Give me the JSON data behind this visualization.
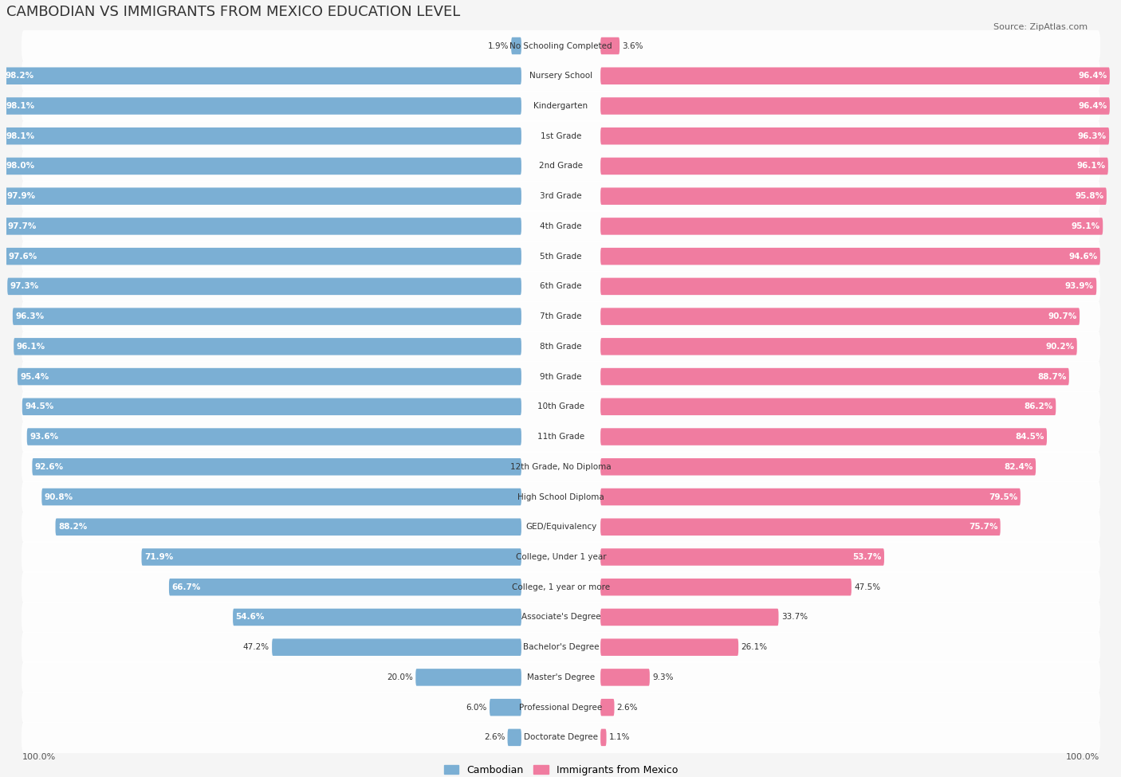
{
  "title": "CAMBODIAN VS IMMIGRANTS FROM MEXICO EDUCATION LEVEL",
  "source": "Source: ZipAtlas.com",
  "categories": [
    "No Schooling Completed",
    "Nursery School",
    "Kindergarten",
    "1st Grade",
    "2nd Grade",
    "3rd Grade",
    "4th Grade",
    "5th Grade",
    "6th Grade",
    "7th Grade",
    "8th Grade",
    "9th Grade",
    "10th Grade",
    "11th Grade",
    "12th Grade, No Diploma",
    "High School Diploma",
    "GED/Equivalency",
    "College, Under 1 year",
    "College, 1 year or more",
    "Associate's Degree",
    "Bachelor's Degree",
    "Master's Degree",
    "Professional Degree",
    "Doctorate Degree"
  ],
  "cambodian": [
    1.9,
    98.2,
    98.1,
    98.1,
    98.0,
    97.9,
    97.7,
    97.6,
    97.3,
    96.3,
    96.1,
    95.4,
    94.5,
    93.6,
    92.6,
    90.8,
    88.2,
    71.9,
    66.7,
    54.6,
    47.2,
    20.0,
    6.0,
    2.6
  ],
  "mexico": [
    3.6,
    96.4,
    96.4,
    96.3,
    96.1,
    95.8,
    95.1,
    94.6,
    93.9,
    90.7,
    90.2,
    88.7,
    86.2,
    84.5,
    82.4,
    79.5,
    75.7,
    53.7,
    47.5,
    33.7,
    26.1,
    9.3,
    2.6,
    1.1
  ],
  "cambodian_color": "#7bafd4",
  "mexico_color": "#f07ca0",
  "background_color": "#f5f5f5",
  "bar_background": "#e8e8e8",
  "legend_cambodian": "Cambodian",
  "legend_mexico": "Immigrants from Mexico"
}
